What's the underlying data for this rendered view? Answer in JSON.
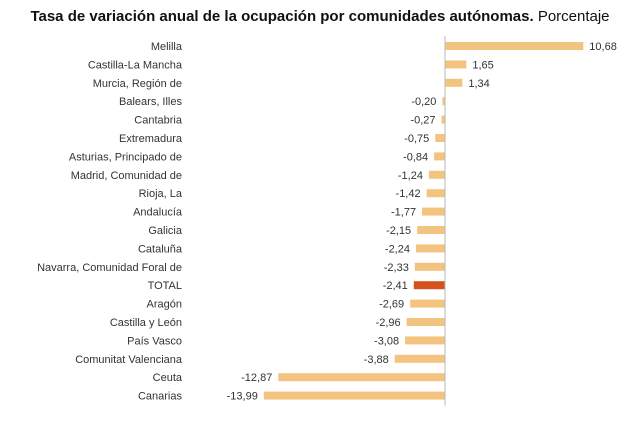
{
  "chart_data": {
    "type": "bar",
    "orientation": "horizontal",
    "title": "Tasa de variación anual de la ocupación por comunidades autónomas.",
    "subtitle": "Porcentaje",
    "xlabel": "",
    "ylabel": "",
    "grid": false,
    "legend": "none",
    "categories": [
      "Melilla",
      "Castilla-La Mancha",
      "Murcia, Región de",
      "Balears, Illes",
      "Cantabria",
      "Extremadura",
      "Asturias, Principado de",
      "Madrid, Comunidad de",
      "Rioja, La",
      "Andalucía",
      "Galicia",
      "Cataluña",
      "Navarra, Comunidad Foral de",
      "TOTAL",
      "Aragón",
      "Castilla y León",
      "País Vasco",
      "Comunitat Valenciana",
      "Ceuta",
      "Canarias"
    ],
    "values": [
      10.68,
      1.65,
      1.34,
      -0.2,
      -0.27,
      -0.75,
      -0.84,
      -1.24,
      -1.42,
      -1.77,
      -2.15,
      -2.24,
      -2.33,
      -2.41,
      -2.69,
      -2.96,
      -3.08,
      -3.88,
      -12.87,
      -13.99
    ],
    "labels": [
      "10,68",
      "1,65",
      "1,34",
      "-0,20",
      "-0,27",
      "-0,75",
      "-0,84",
      "-1,24",
      "-1,42",
      "-1,77",
      "-2,15",
      "-2,24",
      "-2,33",
      "-2,41",
      "-2,69",
      "-2,96",
      "-3,08",
      "-3,88",
      "-12,87",
      "-13,99"
    ],
    "highlight": "TOTAL",
    "xlim": [
      -13.99,
      10.68
    ],
    "colors": {
      "bar": "#f2c47f",
      "highlight": "#d4531c",
      "axis": "#b8b8b8"
    }
  }
}
